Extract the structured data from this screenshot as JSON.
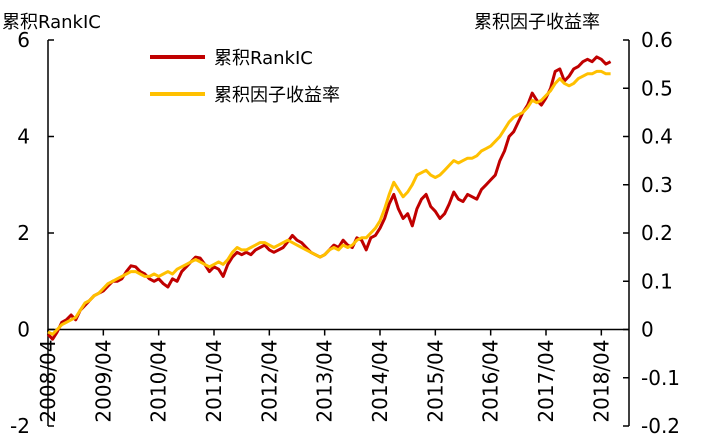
{
  "chart_data": {
    "type": "line",
    "y_left_label": "累积RankIC",
    "y_right_label": "累积因子收益率",
    "y_left_ticks": [
      "6",
      "4",
      "2",
      "0",
      "-2"
    ],
    "y_right_ticks": [
      "0.6",
      "0.5",
      "0.4",
      "0.3",
      "0.2",
      "0.1",
      "0",
      "-0.1",
      "-0.2"
    ],
    "y_left_lim": [
      -2,
      6
    ],
    "y_right_lim": [
      -0.2,
      0.6
    ],
    "x_tick_labels": [
      "2008/04",
      "2009/04",
      "2010/04",
      "2011/04",
      "2012/04",
      "2013/04",
      "2014/04",
      "2015/04",
      "2016/04",
      "2017/04",
      "2018/04"
    ],
    "x_range": [
      "2008-04",
      "2018-10"
    ],
    "legend_position": "top-left",
    "series": [
      {
        "name": "累积RankIC",
        "axis": "left",
        "color": "#C00000",
        "points": [
          [
            "2008-04",
            -0.1
          ],
          [
            "2008-05",
            -0.2
          ],
          [
            "2008-06",
            -0.05
          ],
          [
            "2008-07",
            0.15
          ],
          [
            "2008-08",
            0.2
          ],
          [
            "2008-09",
            0.3
          ],
          [
            "2008-10",
            0.2
          ],
          [
            "2008-11",
            0.4
          ],
          [
            "2008-12",
            0.5
          ],
          [
            "2009-01",
            0.6
          ],
          [
            "2009-02",
            0.7
          ],
          [
            "2009-03",
            0.75
          ],
          [
            "2009-04",
            0.8
          ],
          [
            "2009-05",
            0.9
          ],
          [
            "2009-06",
            1.0
          ],
          [
            "2009-07",
            1.0
          ],
          [
            "2009-08",
            1.05
          ],
          [
            "2009-09",
            1.2
          ],
          [
            "2009-10",
            1.32
          ],
          [
            "2009-11",
            1.3
          ],
          [
            "2009-12",
            1.2
          ],
          [
            "2010-01",
            1.15
          ],
          [
            "2010-02",
            1.05
          ],
          [
            "2010-03",
            1.0
          ],
          [
            "2010-04",
            1.05
          ],
          [
            "2010-05",
            0.95
          ],
          [
            "2010-06",
            0.88
          ],
          [
            "2010-07",
            1.05
          ],
          [
            "2010-08",
            1.0
          ],
          [
            "2010-09",
            1.2
          ],
          [
            "2010-10",
            1.3
          ],
          [
            "2010-11",
            1.4
          ],
          [
            "2010-12",
            1.5
          ],
          [
            "2011-01",
            1.48
          ],
          [
            "2011-02",
            1.35
          ],
          [
            "2011-03",
            1.2
          ],
          [
            "2011-04",
            1.3
          ],
          [
            "2011-05",
            1.25
          ],
          [
            "2011-06",
            1.1
          ],
          [
            "2011-07",
            1.35
          ],
          [
            "2011-08",
            1.5
          ],
          [
            "2011-09",
            1.6
          ],
          [
            "2011-10",
            1.55
          ],
          [
            "2011-11",
            1.6
          ],
          [
            "2011-12",
            1.55
          ],
          [
            "2012-01",
            1.65
          ],
          [
            "2012-02",
            1.7
          ],
          [
            "2012-03",
            1.75
          ],
          [
            "2012-04",
            1.65
          ],
          [
            "2012-05",
            1.6
          ],
          [
            "2012-06",
            1.65
          ],
          [
            "2012-07",
            1.7
          ],
          [
            "2012-08",
            1.82
          ],
          [
            "2012-09",
            1.95
          ],
          [
            "2012-10",
            1.85
          ],
          [
            "2012-11",
            1.8
          ],
          [
            "2012-12",
            1.7
          ],
          [
            "2013-01",
            1.6
          ],
          [
            "2013-02",
            1.55
          ],
          [
            "2013-03",
            1.5
          ],
          [
            "2013-04",
            1.55
          ],
          [
            "2013-05",
            1.65
          ],
          [
            "2013-06",
            1.75
          ],
          [
            "2013-07",
            1.7
          ],
          [
            "2013-08",
            1.85
          ],
          [
            "2013-09",
            1.75
          ],
          [
            "2013-10",
            1.7
          ],
          [
            "2013-11",
            1.9
          ],
          [
            "2013-12",
            1.85
          ],
          [
            "2014-01",
            1.65
          ],
          [
            "2014-02",
            1.9
          ],
          [
            "2014-03",
            1.95
          ],
          [
            "2014-04",
            2.1
          ],
          [
            "2014-05",
            2.3
          ],
          [
            "2014-06",
            2.6
          ],
          [
            "2014-07",
            2.8
          ],
          [
            "2014-08",
            2.5
          ],
          [
            "2014-09",
            2.3
          ],
          [
            "2014-10",
            2.4
          ],
          [
            "2014-11",
            2.15
          ],
          [
            "2014-12",
            2.5
          ],
          [
            "2015-01",
            2.7
          ],
          [
            "2015-02",
            2.8
          ],
          [
            "2015-03",
            2.55
          ],
          [
            "2015-04",
            2.45
          ],
          [
            "2015-05",
            2.3
          ],
          [
            "2015-06",
            2.4
          ],
          [
            "2015-07",
            2.6
          ],
          [
            "2015-08",
            2.85
          ],
          [
            "2015-09",
            2.7
          ],
          [
            "2015-10",
            2.65
          ],
          [
            "2015-11",
            2.8
          ],
          [
            "2015-12",
            2.75
          ],
          [
            "2016-01",
            2.7
          ],
          [
            "2016-02",
            2.9
          ],
          [
            "2016-03",
            3.0
          ],
          [
            "2016-04",
            3.1
          ],
          [
            "2016-05",
            3.2
          ],
          [
            "2016-06",
            3.5
          ],
          [
            "2016-07",
            3.7
          ],
          [
            "2016-08",
            4.0
          ],
          [
            "2016-09",
            4.1
          ],
          [
            "2016-10",
            4.3
          ],
          [
            "2016-11",
            4.5
          ],
          [
            "2016-12",
            4.65
          ],
          [
            "2017-01",
            4.9
          ],
          [
            "2017-02",
            4.75
          ],
          [
            "2017-03",
            4.65
          ],
          [
            "2017-04",
            4.8
          ],
          [
            "2017-05",
            5.0
          ],
          [
            "2017-06",
            5.35
          ],
          [
            "2017-07",
            5.4
          ],
          [
            "2017-08",
            5.15
          ],
          [
            "2017-09",
            5.25
          ],
          [
            "2017-10",
            5.4
          ],
          [
            "2017-11",
            5.45
          ],
          [
            "2017-12",
            5.55
          ],
          [
            "2018-01",
            5.6
          ],
          [
            "2018-02",
            5.55
          ],
          [
            "2018-03",
            5.65
          ],
          [
            "2018-04",
            5.6
          ],
          [
            "2018-05",
            5.5
          ],
          [
            "2018-06",
            5.55
          ]
        ]
      },
      {
        "name": "累积因子收益率",
        "axis": "right",
        "color": "#FFC000",
        "points": [
          [
            "2008-04",
            -0.005
          ],
          [
            "2008-05",
            -0.01
          ],
          [
            "2008-06",
            0.0
          ],
          [
            "2008-07",
            0.01
          ],
          [
            "2008-08",
            0.015
          ],
          [
            "2008-09",
            0.02
          ],
          [
            "2008-10",
            0.025
          ],
          [
            "2008-11",
            0.04
          ],
          [
            "2008-12",
            0.055
          ],
          [
            "2009-01",
            0.06
          ],
          [
            "2009-02",
            0.07
          ],
          [
            "2009-03",
            0.075
          ],
          [
            "2009-04",
            0.085
          ],
          [
            "2009-05",
            0.095
          ],
          [
            "2009-06",
            0.1
          ],
          [
            "2009-07",
            0.105
          ],
          [
            "2009-08",
            0.11
          ],
          [
            "2009-09",
            0.115
          ],
          [
            "2009-10",
            0.12
          ],
          [
            "2009-11",
            0.12
          ],
          [
            "2009-12",
            0.115
          ],
          [
            "2010-01",
            0.11
          ],
          [
            "2010-02",
            0.11
          ],
          [
            "2010-03",
            0.115
          ],
          [
            "2010-04",
            0.11
          ],
          [
            "2010-05",
            0.115
          ],
          [
            "2010-06",
            0.12
          ],
          [
            "2010-07",
            0.115
          ],
          [
            "2010-08",
            0.125
          ],
          [
            "2010-09",
            0.13
          ],
          [
            "2010-10",
            0.135
          ],
          [
            "2010-11",
            0.14
          ],
          [
            "2010-12",
            0.145
          ],
          [
            "2011-01",
            0.14
          ],
          [
            "2011-02",
            0.135
          ],
          [
            "2011-03",
            0.13
          ],
          [
            "2011-04",
            0.135
          ],
          [
            "2011-05",
            0.14
          ],
          [
            "2011-06",
            0.135
          ],
          [
            "2011-07",
            0.145
          ],
          [
            "2011-08",
            0.16
          ],
          [
            "2011-09",
            0.17
          ],
          [
            "2011-10",
            0.165
          ],
          [
            "2011-11",
            0.165
          ],
          [
            "2011-12",
            0.17
          ],
          [
            "2012-01",
            0.175
          ],
          [
            "2012-02",
            0.18
          ],
          [
            "2012-03",
            0.18
          ],
          [
            "2012-04",
            0.175
          ],
          [
            "2012-05",
            0.17
          ],
          [
            "2012-06",
            0.175
          ],
          [
            "2012-07",
            0.18
          ],
          [
            "2012-08",
            0.185
          ],
          [
            "2012-09",
            0.18
          ],
          [
            "2012-10",
            0.175
          ],
          [
            "2012-11",
            0.17
          ],
          [
            "2012-12",
            0.165
          ],
          [
            "2013-01",
            0.16
          ],
          [
            "2013-02",
            0.155
          ],
          [
            "2013-03",
            0.15
          ],
          [
            "2013-04",
            0.155
          ],
          [
            "2013-05",
            0.165
          ],
          [
            "2013-06",
            0.17
          ],
          [
            "2013-07",
            0.165
          ],
          [
            "2013-08",
            0.175
          ],
          [
            "2013-09",
            0.17
          ],
          [
            "2013-10",
            0.175
          ],
          [
            "2013-11",
            0.185
          ],
          [
            "2013-12",
            0.19
          ],
          [
            "2014-01",
            0.19
          ],
          [
            "2014-02",
            0.2
          ],
          [
            "2014-03",
            0.21
          ],
          [
            "2014-04",
            0.225
          ],
          [
            "2014-05",
            0.25
          ],
          [
            "2014-06",
            0.28
          ],
          [
            "2014-07",
            0.305
          ],
          [
            "2014-08",
            0.29
          ],
          [
            "2014-09",
            0.275
          ],
          [
            "2014-10",
            0.285
          ],
          [
            "2014-11",
            0.3
          ],
          [
            "2014-12",
            0.32
          ],
          [
            "2015-01",
            0.325
          ],
          [
            "2015-02",
            0.33
          ],
          [
            "2015-03",
            0.32
          ],
          [
            "2015-04",
            0.315
          ],
          [
            "2015-05",
            0.32
          ],
          [
            "2015-06",
            0.33
          ],
          [
            "2015-07",
            0.34
          ],
          [
            "2015-08",
            0.35
          ],
          [
            "2015-09",
            0.345
          ],
          [
            "2015-10",
            0.35
          ],
          [
            "2015-11",
            0.355
          ],
          [
            "2015-12",
            0.355
          ],
          [
            "2016-01",
            0.36
          ],
          [
            "2016-02",
            0.37
          ],
          [
            "2016-03",
            0.375
          ],
          [
            "2016-04",
            0.38
          ],
          [
            "2016-05",
            0.39
          ],
          [
            "2016-06",
            0.4
          ],
          [
            "2016-07",
            0.415
          ],
          [
            "2016-08",
            0.43
          ],
          [
            "2016-09",
            0.44
          ],
          [
            "2016-10",
            0.445
          ],
          [
            "2016-11",
            0.45
          ],
          [
            "2016-12",
            0.46
          ],
          [
            "2017-01",
            0.475
          ],
          [
            "2017-02",
            0.47
          ],
          [
            "2017-03",
            0.475
          ],
          [
            "2017-04",
            0.485
          ],
          [
            "2017-05",
            0.495
          ],
          [
            "2017-06",
            0.51
          ],
          [
            "2017-07",
            0.52
          ],
          [
            "2017-08",
            0.51
          ],
          [
            "2017-09",
            0.505
          ],
          [
            "2017-10",
            0.51
          ],
          [
            "2017-11",
            0.52
          ],
          [
            "2017-12",
            0.525
          ],
          [
            "2018-01",
            0.53
          ],
          [
            "2018-02",
            0.53
          ],
          [
            "2018-03",
            0.535
          ],
          [
            "2018-04",
            0.535
          ],
          [
            "2018-05",
            0.53
          ],
          [
            "2018-06",
            0.53
          ]
        ]
      }
    ]
  }
}
